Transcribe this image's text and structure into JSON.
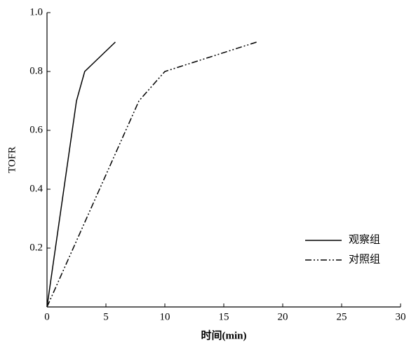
{
  "chart_data": {
    "type": "line",
    "x_label": "时间(min)",
    "y_label": "TOFR",
    "xlim": [
      0,
      30
    ],
    "xticks": [
      0,
      5,
      10,
      15,
      20,
      25,
      30
    ],
    "ylim": [
      0,
      1
    ],
    "yticks": [
      0.2,
      0.4,
      0.6,
      0.8,
      {
        "value": 1,
        "label": "1.0"
      }
    ],
    "legend": "lower right",
    "series": [
      {
        "name": "观察组",
        "color": "#000000",
        "style": "solid",
        "x": [
          0,
          2.5,
          3.2,
          5.8
        ],
        "values": [
          0,
          0.7,
          0.8,
          0.9
        ]
      },
      {
        "name": "对照组",
        "color": "#000000",
        "style": "dash-dot-dot",
        "x": [
          0,
          7.8,
          10,
          17.8
        ],
        "values": [
          0,
          0.7,
          0.8,
          0.9
        ]
      }
    ]
  }
}
